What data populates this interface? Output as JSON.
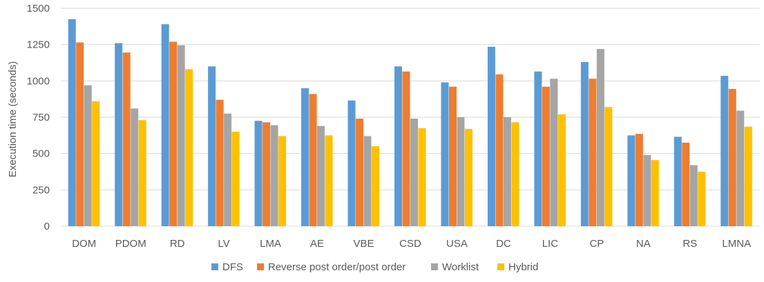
{
  "chart_data": {
    "type": "bar",
    "title": "",
    "xlabel": "",
    "ylabel": "Execution time (seconds)",
    "ylim": [
      0,
      1500
    ],
    "yticks": [
      0,
      250,
      500,
      750,
      1000,
      1250,
      1500
    ],
    "categories": [
      "DOM",
      "PDOM",
      "RD",
      "LV",
      "LMA",
      "AE",
      "VBE",
      "CSD",
      "USA",
      "DC",
      "LIC",
      "CP",
      "NA",
      "RS",
      "LMNA"
    ],
    "series": [
      {
        "name": "DFS",
        "color": "#5B9BD5",
        "values": [
          1425,
          1260,
          1390,
          1100,
          725,
          950,
          865,
          1100,
          990,
          1235,
          1065,
          1130,
          625,
          615,
          1035
        ]
      },
      {
        "name": "Reverse post order/post order",
        "color": "#ED7D31",
        "values": [
          1265,
          1195,
          1270,
          870,
          715,
          910,
          740,
          1065,
          960,
          1045,
          960,
          1015,
          635,
          575,
          945
        ]
      },
      {
        "name": "Worklist",
        "color": "#A5A5A5",
        "values": [
          970,
          810,
          1245,
          775,
          695,
          690,
          620,
          740,
          750,
          750,
          1015,
          1220,
          490,
          420,
          795
        ]
      },
      {
        "name": "Hybrid",
        "color": "#FFC000",
        "values": [
          860,
          730,
          1080,
          650,
          620,
          625,
          550,
          675,
          670,
          715,
          770,
          820,
          455,
          375,
          685
        ]
      }
    ],
    "grid": true,
    "legend_position": "bottom"
  }
}
